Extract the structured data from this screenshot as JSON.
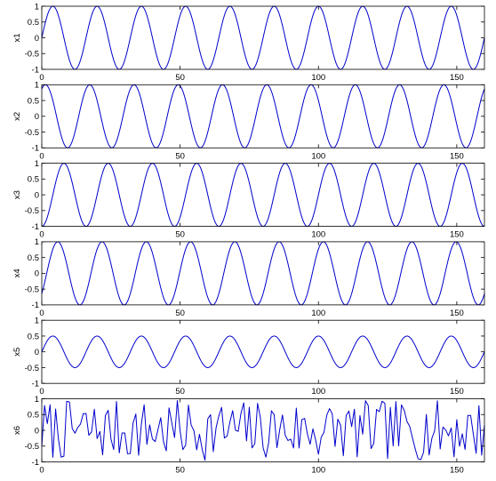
{
  "chart_data": [
    {
      "type": "line",
      "ylabel": "x1",
      "xlim": [
        0,
        160
      ],
      "ylim": [
        -1,
        1
      ],
      "xticks": [
        0,
        50,
        100,
        150
      ],
      "xtick_labels": [
        "0",
        "50",
        "100",
        "150"
      ],
      "yticks": [
        1,
        0.5,
        0,
        -0.5,
        -1
      ],
      "ytick_labels": [
        "1",
        "0.5",
        "0",
        "-0.5",
        "-1"
      ],
      "color": "#0000cc",
      "signal": {
        "kind": "sine",
        "amplitude": 1,
        "period": 16,
        "phase_deg": 0
      }
    },
    {
      "type": "line",
      "ylabel": "x2",
      "xlim": [
        0,
        160
      ],
      "ylim": [
        -1,
        1
      ],
      "xticks": [
        0,
        50,
        100,
        150
      ],
      "xtick_labels": [
        "0",
        "50",
        "100",
        "150"
      ],
      "yticks": [
        1,
        0.5,
        0,
        -0.5,
        -1
      ],
      "ytick_labels": [
        "1",
        "0.5",
        "0",
        "-0.5",
        "-1"
      ],
      "color": "#0000cc",
      "signal": {
        "kind": "sine",
        "amplitude": 1,
        "period": 16,
        "phase_deg": 60
      }
    },
    {
      "type": "line",
      "ylabel": "x3",
      "xlim": [
        0,
        160
      ],
      "ylim": [
        -1,
        1
      ],
      "xticks": [
        0,
        50,
        100,
        150
      ],
      "xtick_labels": [
        "0",
        "50",
        "100",
        "150"
      ],
      "yticks": [
        1,
        0.5,
        0,
        -0.5,
        -1
      ],
      "ytick_labels": [
        "1",
        "0.5",
        "0",
        "-0.5",
        "-1"
      ],
      "color": "#0000cc",
      "signal": {
        "kind": "sine",
        "amplitude": 1,
        "period": 16,
        "phase_deg": -90
      }
    },
    {
      "type": "line",
      "ylabel": "x4",
      "xlim": [
        0,
        160
      ],
      "ylim": [
        -1,
        1
      ],
      "xticks": [
        0,
        50,
        100,
        150
      ],
      "xtick_labels": [
        "0",
        "50",
        "100",
        "150"
      ],
      "yticks": [
        1,
        0.5,
        0,
        -0.5,
        -1
      ],
      "ytick_labels": [
        "1",
        "0.5",
        "0",
        "-0.5",
        "-1"
      ],
      "color": "#0000cc",
      "signal": {
        "kind": "sine",
        "amplitude": 1,
        "period": 16,
        "phase_deg": -40
      }
    },
    {
      "type": "line",
      "ylabel": "x5",
      "xlim": [
        0,
        160
      ],
      "ylim": [
        -1,
        1
      ],
      "xticks": [
        0,
        50,
        100,
        150
      ],
      "xtick_labels": [
        "0",
        "50",
        "100",
        "150"
      ],
      "yticks": [
        1,
        0.5,
        0,
        -0.5,
        -1
      ],
      "ytick_labels": [
        "1",
        "0.5",
        "0",
        "-0.5",
        "-1"
      ],
      "color": "#0000cc",
      "signal": {
        "kind": "sine",
        "amplitude": 0.5,
        "period": 16,
        "phase_deg": 0
      }
    },
    {
      "type": "line",
      "ylabel": "x6",
      "xlim": [
        0,
        160
      ],
      "ylim": [
        -1,
        1
      ],
      "xticks": [
        0,
        50,
        100,
        150
      ],
      "xtick_labels": [
        "0",
        "50",
        "100",
        "150"
      ],
      "yticks": [
        1,
        0.5,
        0,
        -0.5,
        -1
      ],
      "ytick_labels": [
        "1",
        "0.5",
        "0",
        "-0.5",
        "-1"
      ],
      "color": "#0000cc",
      "signal": {
        "kind": "noise",
        "amplitude": 1,
        "seed": 7
      }
    }
  ]
}
